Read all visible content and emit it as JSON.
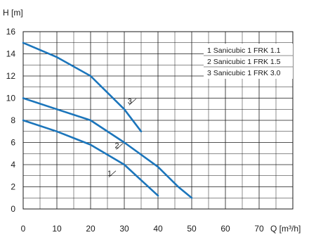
{
  "chart_data": {
    "type": "line",
    "title": "",
    "ylabel": "H [m]",
    "xlabel": "Q [m³/h]",
    "xlim": [
      0,
      80
    ],
    "ylim": [
      0,
      16
    ],
    "x_ticks": [
      0,
      10,
      20,
      30,
      40,
      50,
      60,
      70
    ],
    "y_ticks": [
      0,
      2,
      4,
      6,
      8,
      10,
      12,
      14,
      16
    ],
    "grid": true,
    "legend_position": "top-right",
    "legend": [
      "1 Sanicubic 1 FRK 1.1",
      "2 Sanicubic 1 FRK 1.5",
      "3 Sanicubic 1 FRK 3.0"
    ],
    "line_color": "#1b75bb",
    "series": [
      {
        "name": "1",
        "points": [
          [
            0,
            8
          ],
          [
            10,
            7
          ],
          [
            20,
            5.8
          ],
          [
            30,
            4
          ],
          [
            35,
            2.6
          ],
          [
            40,
            1.2
          ]
        ]
      },
      {
        "name": "2",
        "points": [
          [
            0,
            10
          ],
          [
            10,
            9
          ],
          [
            20,
            8
          ],
          [
            30,
            6
          ],
          [
            40,
            3.8
          ],
          [
            46,
            2
          ],
          [
            50,
            1
          ]
        ]
      },
      {
        "name": "3",
        "points": [
          [
            0,
            15
          ],
          [
            10,
            13.7
          ],
          [
            20,
            12
          ],
          [
            30,
            9
          ],
          [
            35,
            7
          ]
        ]
      }
    ],
    "series_label_positions": [
      [
        25,
        3
      ],
      [
        27.2,
        5.5
      ],
      [
        31,
        9.5
      ]
    ]
  }
}
